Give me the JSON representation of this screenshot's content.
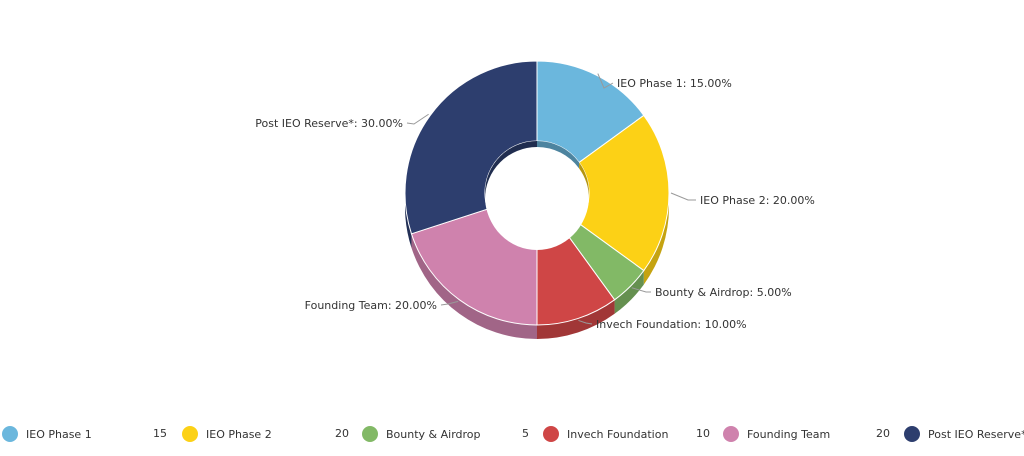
{
  "chart_data": {
    "type": "pie",
    "style": "3d-donut",
    "title": "",
    "legend_position": "bottom",
    "slices": [
      {
        "name": "IEO Phase 1",
        "value": 15,
        "label": "IEO Phase 1: 15.00%",
        "color": "#6bb7dd"
      },
      {
        "name": "IEO Phase 2",
        "value": 20,
        "label": "IEO Phase 2: 20.00%",
        "color": "#fcd116"
      },
      {
        "name": "Bounty & Airdrop",
        "value": 5,
        "label": "Bounty & Airdrop: 5.00%",
        "color": "#82b966"
      },
      {
        "name": "Invech Foundation",
        "value": 10,
        "label": "Invech Foundation: 10.00%",
        "color": "#cf4646"
      },
      {
        "name": "Founding Team",
        "value": 20,
        "label": "Founding Team: 20.00%",
        "color": "#cf82ad"
      },
      {
        "name": "Post IEO Reserve*",
        "value": 30,
        "label": "Post IEO Reserve*: 30.00%",
        "color": "#2d3e6e"
      }
    ]
  }
}
